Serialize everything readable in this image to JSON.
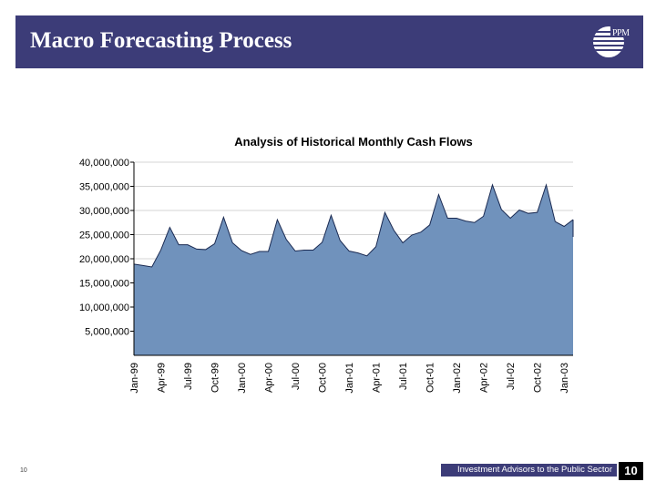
{
  "header": {
    "title": "Macro Forecasting Process",
    "logo_text": "PPM"
  },
  "footer": {
    "page_number_small": "10",
    "tagline": "Investment Advisors to the Public Sector",
    "page_number": "10"
  },
  "colors": {
    "header_bg": "#3c3c78",
    "area_fill": "#7092bc",
    "area_stroke": "#1a2a52"
  },
  "chart_data": {
    "type": "area",
    "title": "Analysis of Historical Monthly Cash Flows",
    "xlabel": "",
    "ylabel": "",
    "ylim": [
      0,
      40000000
    ],
    "y_ticks": [
      "40,000,000",
      "35,000,000",
      "30,000,000",
      "25,000,000",
      "20,000,000",
      "15,000,000",
      "10,000,000",
      "5,000,000"
    ],
    "x_tick_labels": [
      "Jan-99",
      "Apr-99",
      "Jul-99",
      "Oct-99",
      "Jan-00",
      "Apr-00",
      "Jul-00",
      "Oct-00",
      "Jan-01",
      "Apr-01",
      "Jul-01",
      "Oct-01",
      "Jan-02",
      "Apr-02",
      "Jul-02",
      "Oct-02",
      "Jan-03"
    ],
    "grid": true,
    "legend": "none",
    "x": [
      "Jan-99",
      "Feb-99",
      "Mar-99",
      "Apr-99",
      "May-99",
      "Jun-99",
      "Jul-99",
      "Aug-99",
      "Sep-99",
      "Oct-99",
      "Nov-99",
      "Dec-99",
      "Jan-00",
      "Feb-00",
      "Mar-00",
      "Apr-00",
      "May-00",
      "Jun-00",
      "Jul-00",
      "Aug-00",
      "Sep-00",
      "Oct-00",
      "Nov-00",
      "Dec-00",
      "Jan-01",
      "Feb-01",
      "Mar-01",
      "Apr-01",
      "May-01",
      "Jun-01",
      "Jul-01",
      "Aug-01",
      "Sep-01",
      "Oct-01",
      "Nov-01",
      "Dec-01",
      "Jan-02",
      "Feb-02",
      "Mar-02",
      "Apr-02",
      "May-02",
      "Jun-02",
      "Jul-02",
      "Aug-02",
      "Sep-02",
      "Oct-02",
      "Nov-02",
      "Dec-02",
      "Jan-03",
      "Feb-03"
    ],
    "series": [
      {
        "values": [
          18900000,
          18600000,
          18300000,
          21800000,
          26500000,
          22900000,
          22900000,
          22000000,
          21900000,
          23100000,
          28600000,
          23300000,
          21700000,
          20900000,
          21500000,
          21500000,
          28100000,
          24000000,
          21600000,
          21800000,
          21800000,
          23400000,
          29000000,
          23800000,
          21600000,
          21200000,
          20600000,
          22500000,
          29600000,
          25900000,
          23300000,
          24900000,
          25500000,
          27000000,
          33300000,
          28400000,
          28400000,
          27800000,
          27500000,
          28800000,
          35300000,
          30200000,
          28400000,
          30100000,
          29400000,
          29600000,
          35300000,
          27700000,
          26700000,
          28100000
        ]
      }
    ]
  }
}
